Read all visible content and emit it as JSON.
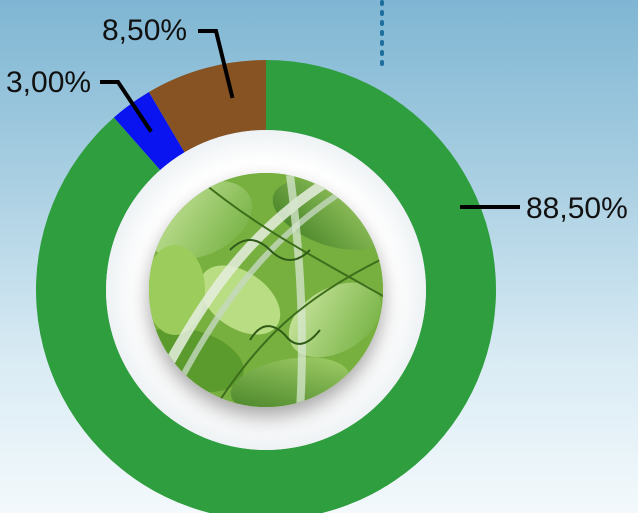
{
  "chart_data": {
    "type": "pie",
    "variant": "donut",
    "title": "",
    "slices": [
      {
        "label": "88,50%",
        "value": 88.5,
        "color": "#2e9e3e"
      },
      {
        "label": "3,00%",
        "value": 3.0,
        "color": "#0a14f0"
      },
      {
        "label": "8,50%",
        "value": 8.5,
        "color": "#875323"
      }
    ],
    "start_angle_deg": 0,
    "direction": "clockwise",
    "center_image": "green-foliage-photo"
  },
  "colors": {
    "background_top": "#7fb6d3",
    "background_bottom": "#f3f9fc",
    "divider_dots": "#1f6f9e"
  }
}
